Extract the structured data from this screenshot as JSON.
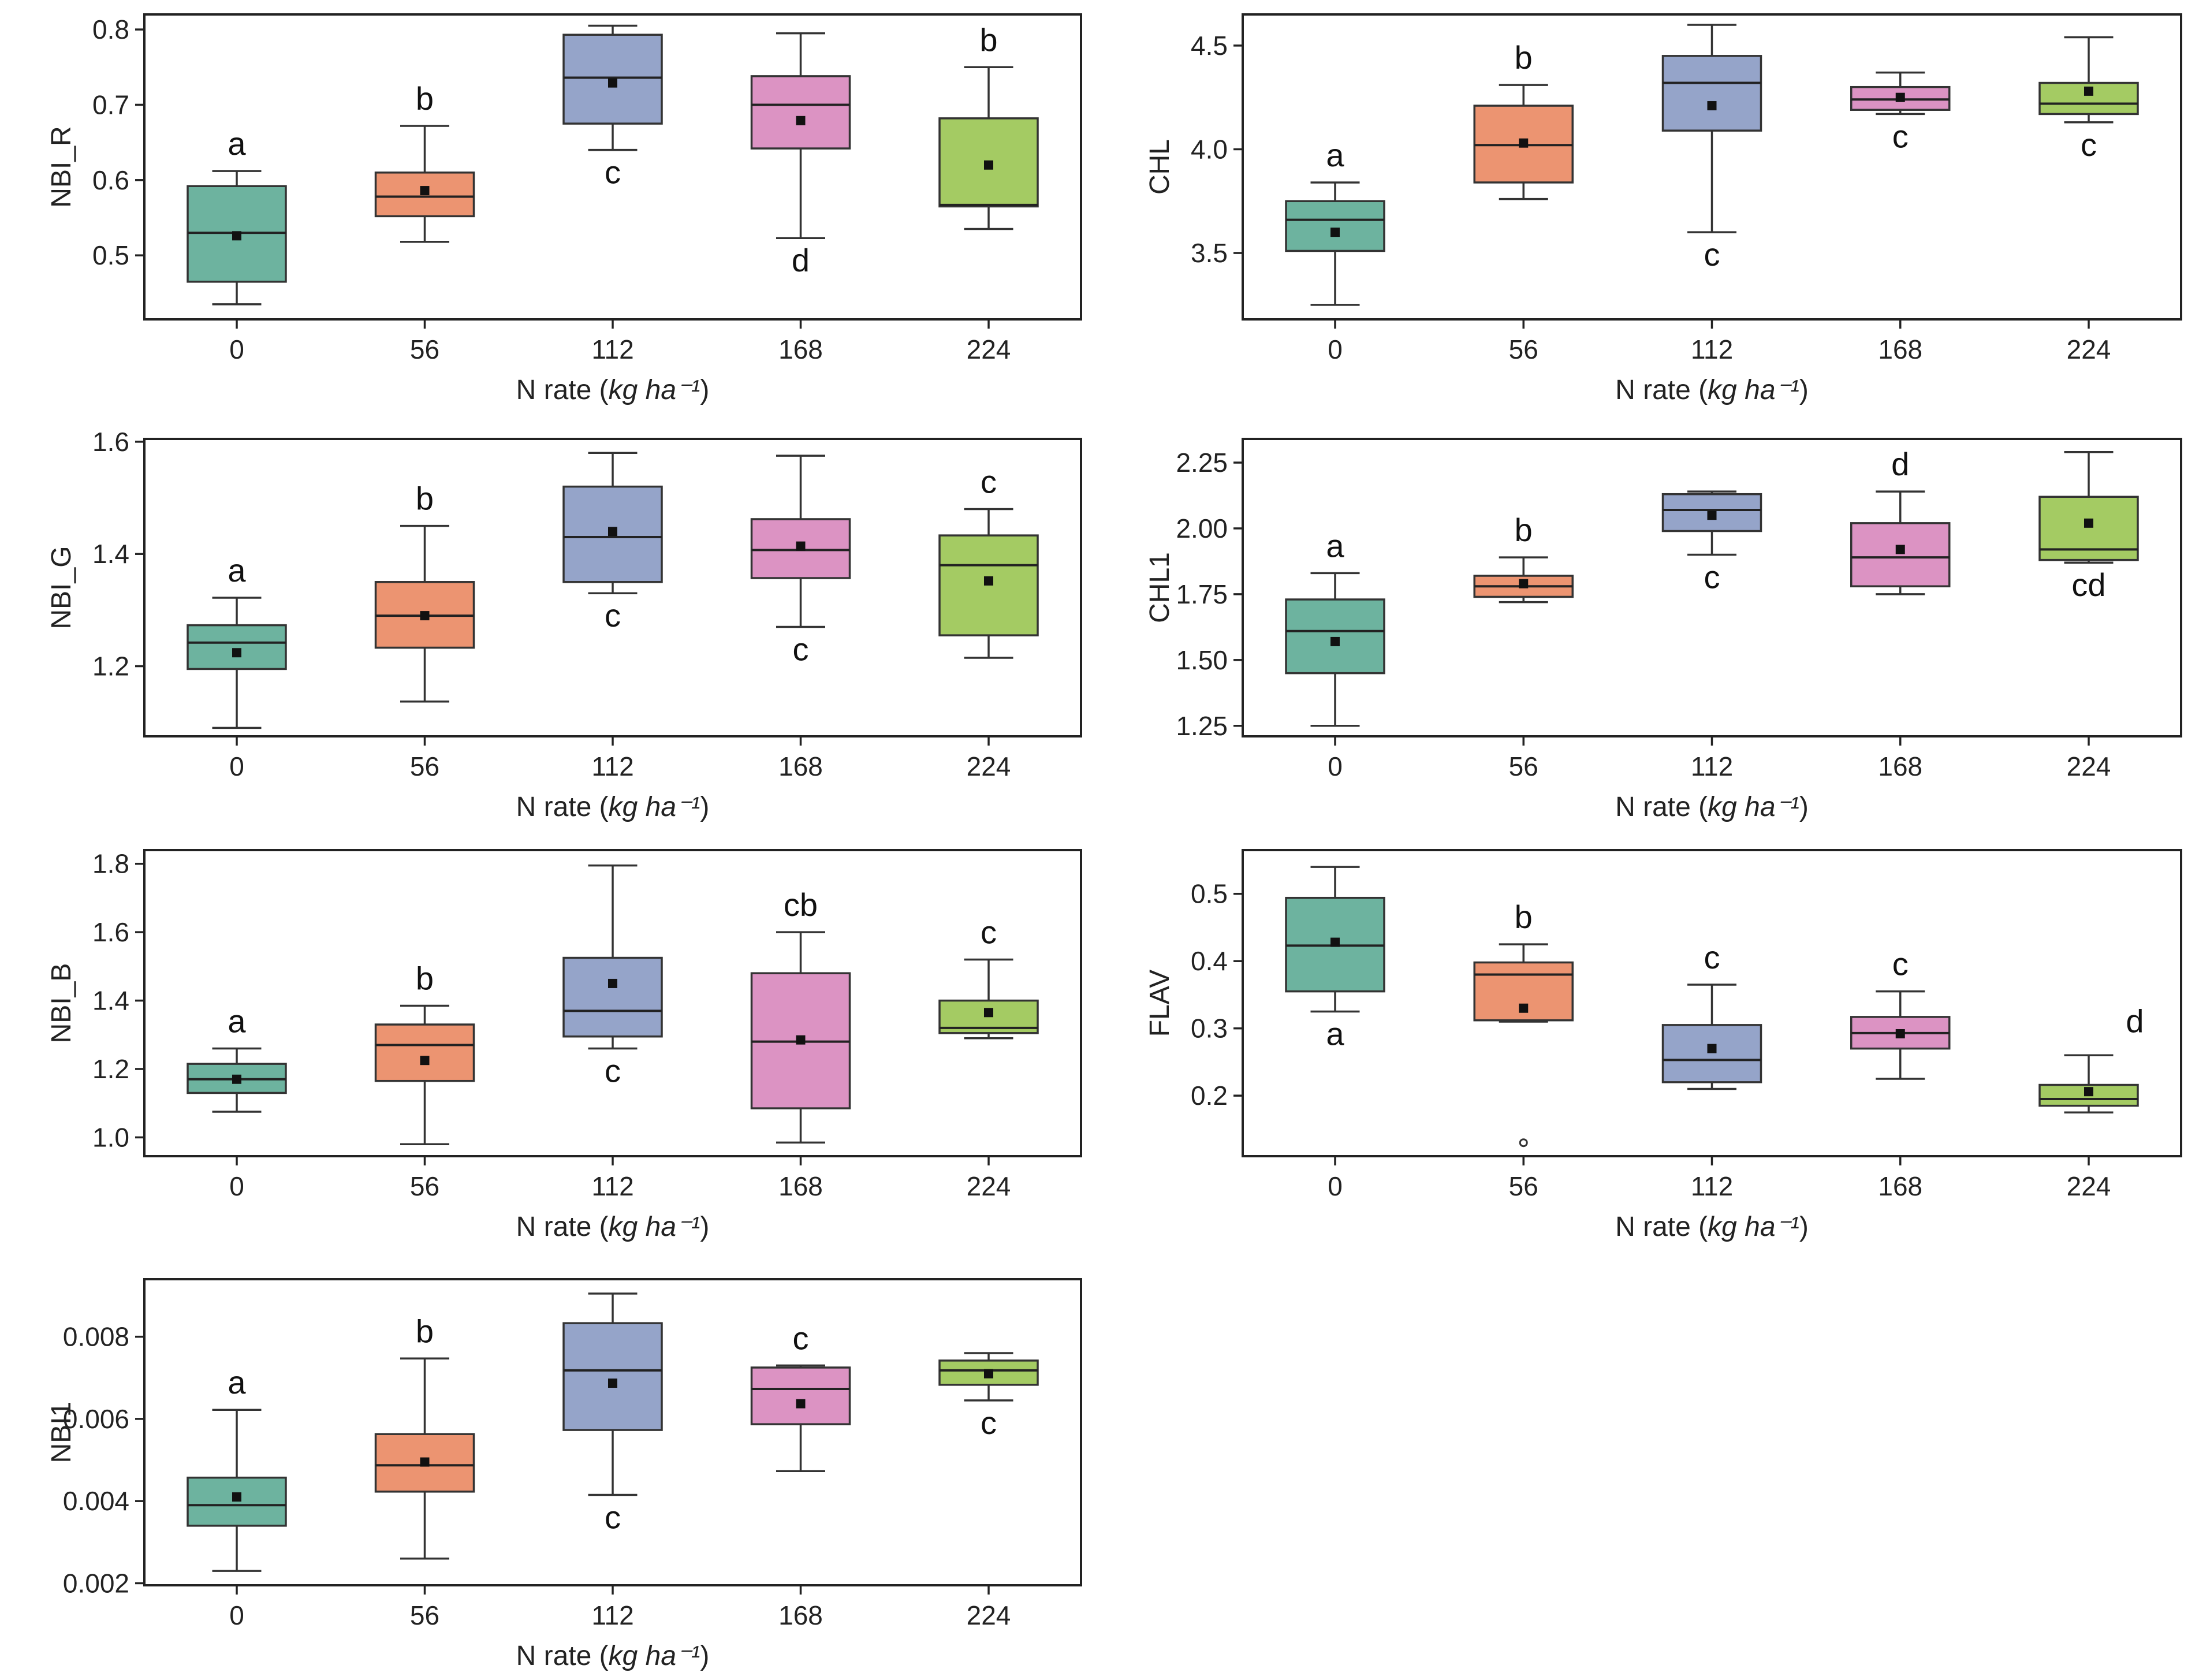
{
  "colors": {
    "0": "#6db39f",
    "56": "#ec9471",
    "112": "#95a4c9",
    "168": "#dc93c3",
    "224": "#a4cb63"
  },
  "chart_data": [
    {
      "type": "box",
      "ylabel": "NBI_R",
      "xlabel": "N rate (kg ha⁻¹)",
      "categories": [
        "0",
        "56",
        "112",
        "168",
        "224"
      ],
      "ylim": [
        0.415,
        0.82
      ],
      "yticks": [
        0.5,
        0.6,
        0.7,
        0.8
      ],
      "ytick_labels": [
        "0.5",
        "0.6",
        "0.7",
        "0.8"
      ],
      "boxes": [
        {
          "min": 0.435,
          "q1": 0.465,
          "median": 0.53,
          "q3": 0.592,
          "max": 0.612,
          "mean": 0.526,
          "letter": "a",
          "letter_pos": "above"
        },
        {
          "min": 0.518,
          "q1": 0.552,
          "median": 0.578,
          "q3": 0.61,
          "max": 0.672,
          "mean": 0.586,
          "letter": "b",
          "letter_pos": "above"
        },
        {
          "min": 0.64,
          "q1": 0.675,
          "median": 0.736,
          "q3": 0.793,
          "max": 0.805,
          "mean": 0.729,
          "letter": "c",
          "letter_pos": "below"
        },
        {
          "min": 0.523,
          "q1": 0.642,
          "median": 0.7,
          "q3": 0.738,
          "max": 0.795,
          "mean": 0.679,
          "letter": "d",
          "letter_pos": "below"
        },
        {
          "min": 0.535,
          "q1": 0.565,
          "median": 0.567,
          "q3": 0.682,
          "max": 0.75,
          "mean": 0.62,
          "letter": "b",
          "letter_pos": "above"
        }
      ]
    },
    {
      "type": "box",
      "ylabel": "CHL",
      "xlabel": "N rate (kg ha⁻¹)",
      "categories": [
        "0",
        "56",
        "112",
        "168",
        "224"
      ],
      "ylim": [
        3.18,
        4.65
      ],
      "yticks": [
        3.5,
        4.0,
        4.5
      ],
      "ytick_labels": [
        "3.5",
        "4.0",
        "4.5"
      ],
      "boxes": [
        {
          "min": 3.25,
          "q1": 3.51,
          "median": 3.66,
          "q3": 3.75,
          "max": 3.84,
          "mean": 3.6,
          "letter": "a",
          "letter_pos": "above"
        },
        {
          "min": 3.76,
          "q1": 3.84,
          "median": 4.02,
          "q3": 4.21,
          "max": 4.31,
          "mean": 4.03,
          "letter": "b",
          "letter_pos": "above"
        },
        {
          "min": 3.6,
          "q1": 4.09,
          "median": 4.32,
          "q3": 4.45,
          "max": 4.6,
          "mean": 4.21,
          "letter": "c",
          "letter_pos": "below"
        },
        {
          "min": 4.17,
          "q1": 4.19,
          "median": 4.24,
          "q3": 4.3,
          "max": 4.37,
          "mean": 4.25,
          "letter": "c",
          "letter_pos": "below"
        },
        {
          "min": 4.13,
          "q1": 4.17,
          "median": 4.22,
          "q3": 4.32,
          "max": 4.54,
          "mean": 4.28,
          "letter": "c",
          "letter_pos": "below"
        }
      ]
    },
    {
      "type": "box",
      "ylabel": "NBI_G",
      "xlabel": "N rate (kg ha⁻¹)",
      "categories": [
        "0",
        "56",
        "112",
        "168",
        "224"
      ],
      "ylim": [
        1.075,
        1.605
      ],
      "yticks": [
        1.2,
        1.4,
        1.6
      ],
      "ytick_labels": [
        "1.2",
        "1.4",
        "1.6"
      ],
      "boxes": [
        {
          "min": 1.09,
          "q1": 1.195,
          "median": 1.242,
          "q3": 1.273,
          "max": 1.322,
          "mean": 1.224,
          "letter": "a",
          "letter_pos": "above"
        },
        {
          "min": 1.137,
          "q1": 1.233,
          "median": 1.29,
          "q3": 1.35,
          "max": 1.45,
          "mean": 1.29,
          "letter": "b",
          "letter_pos": "above"
        },
        {
          "min": 1.33,
          "q1": 1.35,
          "median": 1.43,
          "q3": 1.52,
          "max": 1.58,
          "mean": 1.44,
          "letter": "c",
          "letter_pos": "below"
        },
        {
          "min": 1.27,
          "q1": 1.357,
          "median": 1.407,
          "q3": 1.462,
          "max": 1.575,
          "mean": 1.414,
          "letter": "c",
          "letter_pos": "below"
        },
        {
          "min": 1.215,
          "q1": 1.255,
          "median": 1.38,
          "q3": 1.433,
          "max": 1.48,
          "mean": 1.352,
          "letter": "c",
          "letter_pos": "above"
        }
      ]
    },
    {
      "type": "box",
      "ylabel": "CHL1",
      "xlabel": "N rate (kg ha⁻¹)",
      "categories": [
        "0",
        "56",
        "112",
        "168",
        "224"
      ],
      "ylim": [
        1.21,
        2.34
      ],
      "yticks": [
        1.25,
        1.5,
        1.75,
        2.0,
        2.25
      ],
      "ytick_labels": [
        "1.25",
        "1.50",
        "1.75",
        "2.00",
        "2.25"
      ],
      "boxes": [
        {
          "min": 1.25,
          "q1": 1.45,
          "median": 1.61,
          "q3": 1.73,
          "max": 1.83,
          "mean": 1.57,
          "letter": "a",
          "letter_pos": "above"
        },
        {
          "min": 1.72,
          "q1": 1.74,
          "median": 1.78,
          "q3": 1.82,
          "max": 1.89,
          "mean": 1.79,
          "letter": "b",
          "letter_pos": "above"
        },
        {
          "min": 1.9,
          "q1": 1.99,
          "median": 2.07,
          "q3": 2.13,
          "max": 2.14,
          "mean": 2.05,
          "letter": "c",
          "letter_pos": "below"
        },
        {
          "min": 1.75,
          "q1": 1.78,
          "median": 1.89,
          "q3": 2.02,
          "max": 2.14,
          "mean": 1.92,
          "letter": "d",
          "letter_pos": "above"
        },
        {
          "min": 1.87,
          "q1": 1.88,
          "median": 1.92,
          "q3": 2.12,
          "max": 2.29,
          "mean": 2.02,
          "letter": "cd",
          "letter_pos": "below"
        }
      ]
    },
    {
      "type": "box",
      "ylabel": "NBI_B",
      "xlabel": "N rate (kg ha⁻¹)",
      "categories": [
        "0",
        "56",
        "112",
        "168",
        "224"
      ],
      "ylim": [
        0.945,
        1.84
      ],
      "yticks": [
        1.0,
        1.2,
        1.4,
        1.6,
        1.8
      ],
      "ytick_labels": [
        "1.0",
        "1.2",
        "1.4",
        "1.6",
        "1.8"
      ],
      "boxes": [
        {
          "min": 1.075,
          "q1": 1.13,
          "median": 1.17,
          "q3": 1.215,
          "max": 1.26,
          "mean": 1.17,
          "letter": "a",
          "letter_pos": "above"
        },
        {
          "min": 0.98,
          "q1": 1.165,
          "median": 1.27,
          "q3": 1.33,
          "max": 1.385,
          "mean": 1.225,
          "letter": "b",
          "letter_pos": "above"
        },
        {
          "min": 1.26,
          "q1": 1.295,
          "median": 1.37,
          "q3": 1.525,
          "max": 1.795,
          "mean": 1.45,
          "letter": "c",
          "letter_pos": "below"
        },
        {
          "min": 0.985,
          "q1": 1.085,
          "median": 1.28,
          "q3": 1.48,
          "max": 1.6,
          "mean": 1.285,
          "letter": "cb",
          "letter_pos": "above"
        },
        {
          "min": 1.29,
          "q1": 1.305,
          "median": 1.32,
          "q3": 1.4,
          "max": 1.52,
          "mean": 1.365,
          "letter": "c",
          "letter_pos": "above"
        }
      ]
    },
    {
      "type": "box",
      "ylabel": "FLAV",
      "xlabel": "N rate (kg ha⁻¹)",
      "categories": [
        "0",
        "56",
        "112",
        "168",
        "224"
      ],
      "ylim": [
        0.11,
        0.565
      ],
      "yticks": [
        0.2,
        0.3,
        0.4,
        0.5
      ],
      "ytick_labels": [
        "0.2",
        "0.3",
        "0.4",
        "0.5"
      ],
      "boxes": [
        {
          "min": 0.325,
          "q1": 0.355,
          "median": 0.423,
          "q3": 0.494,
          "max": 0.54,
          "mean": 0.428,
          "letter": "a",
          "letter_pos": "below"
        },
        {
          "min": 0.31,
          "q1": 0.312,
          "median": 0.38,
          "q3": 0.398,
          "max": 0.425,
          "mean": 0.33,
          "outliers": [
            0.13
          ],
          "letter": "b",
          "letter_pos": "above"
        },
        {
          "min": 0.21,
          "q1": 0.22,
          "median": 0.253,
          "q3": 0.305,
          "max": 0.365,
          "mean": 0.27,
          "letter": "c",
          "letter_pos": "above"
        },
        {
          "min": 0.225,
          "q1": 0.27,
          "median": 0.293,
          "q3": 0.317,
          "max": 0.355,
          "mean": 0.292,
          "letter": "c",
          "letter_pos": "above"
        },
        {
          "min": 0.175,
          "q1": 0.185,
          "median": 0.195,
          "q3": 0.216,
          "max": 0.26,
          "mean": 0.206,
          "letter": "d",
          "letter_pos": "above_right"
        }
      ]
    },
    {
      "type": "box",
      "ylabel": "NBI1",
      "xlabel": "N rate (kg ha⁻¹)",
      "categories": [
        "0",
        "56",
        "112",
        "168",
        "224"
      ],
      "ylim": [
        0.00195,
        0.0094
      ],
      "yticks": [
        0.002,
        0.004,
        0.006,
        0.008
      ],
      "ytick_labels": [
        "0.002",
        "0.004",
        "0.006",
        "0.008"
      ],
      "boxes": [
        {
          "min": 0.0023,
          "q1": 0.0034,
          "median": 0.0039,
          "q3": 0.00457,
          "max": 0.00622,
          "mean": 0.0041,
          "letter": "a",
          "letter_pos": "above"
        },
        {
          "min": 0.0026,
          "q1": 0.00423,
          "median": 0.00487,
          "q3": 0.00563,
          "max": 0.00747,
          "mean": 0.00495,
          "letter": "b",
          "letter_pos": "above"
        },
        {
          "min": 0.00415,
          "q1": 0.00573,
          "median": 0.00718,
          "q3": 0.00833,
          "max": 0.00905,
          "mean": 0.00687,
          "letter": "c",
          "letter_pos": "below"
        },
        {
          "min": 0.00473,
          "q1": 0.00587,
          "median": 0.00673,
          "q3": 0.00725,
          "max": 0.0073,
          "mean": 0.00637,
          "letter": "c",
          "letter_pos": "above"
        },
        {
          "min": 0.00645,
          "q1": 0.00683,
          "median": 0.00718,
          "q3": 0.00742,
          "max": 0.0076,
          "mean": 0.0071,
          "letter": "c",
          "letter_pos": "below"
        }
      ]
    }
  ]
}
